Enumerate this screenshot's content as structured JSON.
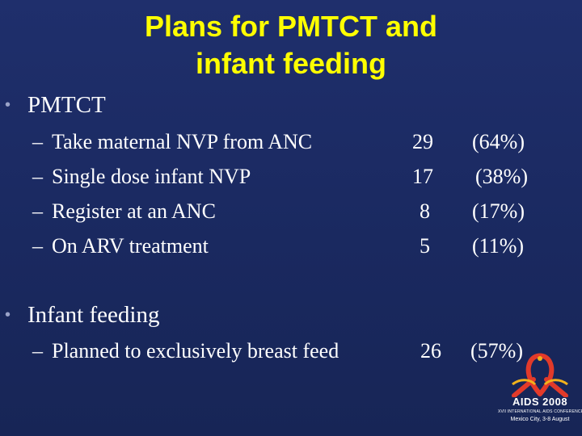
{
  "title": {
    "line1": "Plans for PMTCT and",
    "line2": "infant feeding"
  },
  "bullets": [
    {
      "label": "PMTCT",
      "items": [
        {
          "text": "Take maternal NVP from ANC",
          "count": "29",
          "percent": "(64%)"
        },
        {
          "text": "Single dose infant NVP",
          "count": "17",
          "percent": "(38%)"
        },
        {
          "text": "Register at an ANC",
          "count": "8",
          "percent": "(17%)"
        },
        {
          "text": "On ARV treatment",
          "count": "5",
          "percent": "(11%)"
        }
      ]
    },
    {
      "label": "Infant feeding",
      "items": [
        {
          "text": "Planned to exclusively breast feed",
          "count": "26",
          "percent": "(57%)"
        }
      ]
    }
  ],
  "logo": {
    "name": "AIDS 2008",
    "line2": "XVII INTERNATIONAL AIDS CONFERENCE",
    "line3": "Mexico City, 3-8 August",
    "ribbon_color": "#e23a2a",
    "accent_color": "#f2b21c"
  },
  "colors": {
    "background": "#1b2a63",
    "title": "#ffff00",
    "text": "#ffffff"
  }
}
